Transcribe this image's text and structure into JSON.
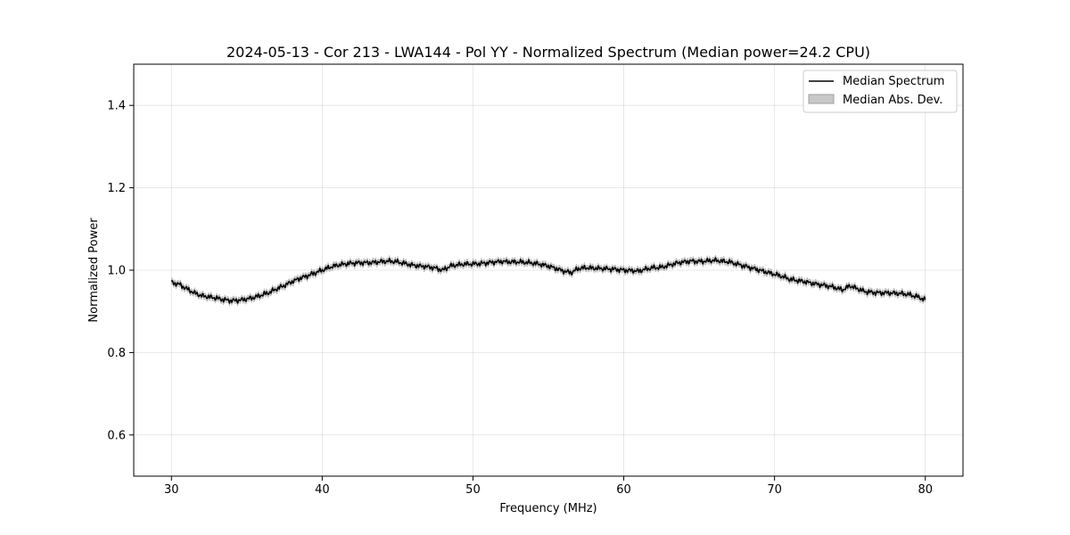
{
  "chart_data": {
    "type": "line",
    "title": "2024-05-13 - Cor 213 - LWA144 - Pol YY - Normalized Spectrum (Median power=24.2 CPU)",
    "xlabel": "Frequency (MHz)",
    "ylabel": "Normalized Power",
    "xlim": [
      27.5,
      82.5
    ],
    "ylim": [
      0.5,
      1.5
    ],
    "xticks": [
      30,
      40,
      50,
      60,
      70,
      80
    ],
    "yticks": [
      0.6,
      0.8,
      1.0,
      1.2,
      1.4
    ],
    "xtick_labels": [
      "30",
      "40",
      "50",
      "60",
      "70",
      "80"
    ],
    "ytick_labels": [
      "0.6",
      "0.8",
      "1.0",
      "1.2",
      "1.4"
    ],
    "grid": true,
    "legend_position": "top-right",
    "series": [
      {
        "name": "Median Spectrum",
        "color": "#000000",
        "x": [
          30,
          30.5,
          31,
          31.5,
          32,
          32.5,
          33,
          33.5,
          34,
          34.5,
          35,
          35.5,
          36,
          36.5,
          37,
          37.5,
          38,
          38.5,
          39,
          39.5,
          40,
          40.5,
          41,
          41.5,
          42,
          42.5,
          43,
          43.5,
          44,
          44.5,
          45,
          45.5,
          46,
          46.5,
          47,
          47.5,
          48,
          48.5,
          49,
          49.5,
          50,
          50.5,
          51,
          51.5,
          52,
          52.5,
          53,
          53.5,
          54,
          54.5,
          55,
          55.5,
          56,
          56.5,
          57,
          57.5,
          58,
          58.5,
          59,
          59.5,
          60,
          60.5,
          61,
          61.5,
          62,
          62.5,
          63,
          63.5,
          64,
          64.5,
          65,
          65.5,
          66,
          66.5,
          67,
          67.5,
          68,
          68.5,
          69,
          69.5,
          70,
          70.5,
          71,
          71.5,
          72,
          72.5,
          73,
          73.5,
          74,
          74.5,
          75,
          75.5,
          76,
          76.5,
          77,
          77.5,
          78,
          78.5,
          79,
          79.5,
          80
        ],
        "values": [
          0.97,
          0.966,
          0.955,
          0.945,
          0.938,
          0.935,
          0.932,
          0.928,
          0.926,
          0.927,
          0.93,
          0.934,
          0.94,
          0.946,
          0.955,
          0.963,
          0.972,
          0.98,
          0.986,
          0.993,
          1.0,
          1.007,
          1.012,
          1.015,
          1.017,
          1.018,
          1.018,
          1.019,
          1.021,
          1.022,
          1.02,
          1.016,
          1.012,
          1.01,
          1.008,
          1.005,
          1.0,
          1.01,
          1.013,
          1.015,
          1.015,
          1.016,
          1.018,
          1.02,
          1.021,
          1.02,
          1.02,
          1.019,
          1.017,
          1.014,
          1.01,
          1.004,
          0.998,
          0.994,
          1.004,
          1.006,
          1.005,
          1.004,
          1.003,
          1.002,
          1.0,
          0.999,
          0.998,
          1.003,
          1.006,
          1.007,
          1.012,
          1.017,
          1.02,
          1.022,
          1.021,
          1.022,
          1.024,
          1.022,
          1.02,
          1.015,
          1.01,
          1.005,
          1.0,
          0.995,
          0.99,
          0.985,
          0.978,
          0.975,
          0.972,
          0.968,
          0.965,
          0.962,
          0.958,
          0.952,
          0.962,
          0.955,
          0.948,
          0.946,
          0.945,
          0.945,
          0.944,
          0.943,
          0.94,
          0.935,
          0.928
        ]
      },
      {
        "name": "Median Abs. Dev.",
        "type": "band",
        "color": "#c8c8c8",
        "deviation": 0.007
      }
    ]
  }
}
